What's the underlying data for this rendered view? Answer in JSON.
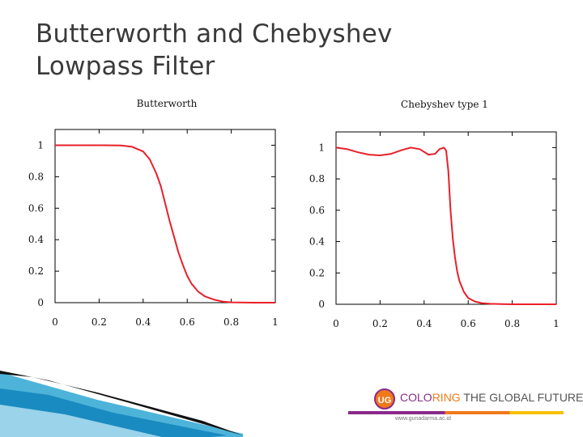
{
  "slide": {
    "title_line1": "Butterworth and Chebyshev",
    "title_line2": "Lowpass Filter"
  },
  "chart_data": [
    {
      "type": "line",
      "title": "Butterworth",
      "xlim": [
        0,
        1
      ],
      "ylim": [
        0,
        1.1
      ],
      "xticks": [
        "0",
        "0.2",
        "0.4",
        "0.6",
        "0.8",
        "1"
      ],
      "yticks": [
        "0",
        "0.2",
        "0.4",
        "0.6",
        "0.8",
        "1"
      ],
      "grid": false,
      "color": "#e8202a",
      "series": [
        {
          "x": [
            0,
            0.1,
            0.2,
            0.3,
            0.35,
            0.4,
            0.43,
            0.46,
            0.48,
            0.5,
            0.52,
            0.54,
            0.56,
            0.58,
            0.6,
            0.62,
            0.65,
            0.68,
            0.72,
            0.76,
            0.8,
            0.9,
            1.0
          ],
          "y": [
            1.0,
            1.0,
            1.0,
            0.998,
            0.99,
            0.96,
            0.91,
            0.82,
            0.74,
            0.63,
            0.52,
            0.42,
            0.32,
            0.24,
            0.17,
            0.12,
            0.07,
            0.04,
            0.02,
            0.007,
            0.002,
            0.0,
            0.0
          ]
        }
      ]
    },
    {
      "type": "line",
      "title": "Chebyshev type 1",
      "xlim": [
        0,
        1
      ],
      "ylim": [
        0,
        1.1
      ],
      "xticks": [
        "0",
        "0.2",
        "0.4",
        "0.6",
        "0.8",
        "1"
      ],
      "yticks": [
        "0",
        "0.2",
        "0.4",
        "0.6",
        "0.8",
        "1"
      ],
      "grid": false,
      "color": "#e8202a",
      "series": [
        {
          "x": [
            0,
            0.05,
            0.1,
            0.15,
            0.2,
            0.25,
            0.3,
            0.34,
            0.38,
            0.42,
            0.45,
            0.47,
            0.49,
            0.5,
            0.51,
            0.52,
            0.53,
            0.54,
            0.55,
            0.56,
            0.58,
            0.6,
            0.63,
            0.66,
            0.7,
            0.75,
            0.8,
            0.9,
            1.0
          ],
          "y": [
            1.0,
            0.99,
            0.97,
            0.955,
            0.95,
            0.96,
            0.985,
            1.0,
            0.99,
            0.955,
            0.96,
            0.99,
            1.0,
            0.98,
            0.85,
            0.6,
            0.42,
            0.3,
            0.21,
            0.15,
            0.08,
            0.04,
            0.018,
            0.008,
            0.003,
            0.001,
            0.0,
            0.0,
            0.0
          ]
        }
      ]
    }
  ],
  "branding": {
    "badge": "UG",
    "slogan_part1": "COLO",
    "slogan_part2": "RING",
    "slogan_part3": " THE GLOBAL FUTURE",
    "url": "www.gunadarma.ac.id",
    "colors": {
      "purple": "#8a2a8a",
      "orange": "#f07a1a",
      "yellow": "#f5c200"
    }
  }
}
